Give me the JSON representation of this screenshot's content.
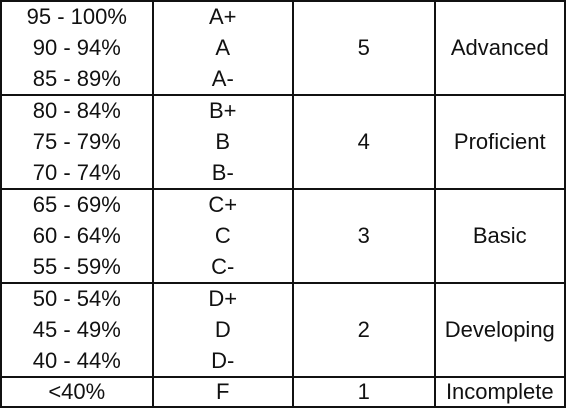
{
  "table": {
    "groups": [
      {
        "ranges": [
          "95 - 100%",
          "90 - 94%",
          "85 - 89%"
        ],
        "letters": [
          "A+",
          "A",
          "A-"
        ],
        "score": "5",
        "level": "Advanced"
      },
      {
        "ranges": [
          "80 - 84%",
          "75 - 79%",
          "70 - 74%"
        ],
        "letters": [
          "B+",
          "B",
          "B-"
        ],
        "score": "4",
        "level": "Proficient"
      },
      {
        "ranges": [
          "65 - 69%",
          "60 - 64%",
          "55 - 59%"
        ],
        "letters": [
          "C+",
          "C",
          "C-"
        ],
        "score": "3",
        "level": "Basic"
      },
      {
        "ranges": [
          "50 - 54%",
          "45 - 49%",
          "40 - 44%"
        ],
        "letters": [
          "D+",
          "D",
          "D-"
        ],
        "score": "2",
        "level": "Developing"
      }
    ],
    "final_row": {
      "range": "<40%",
      "letter": "F",
      "score": "1",
      "level": "Incomplete"
    }
  }
}
